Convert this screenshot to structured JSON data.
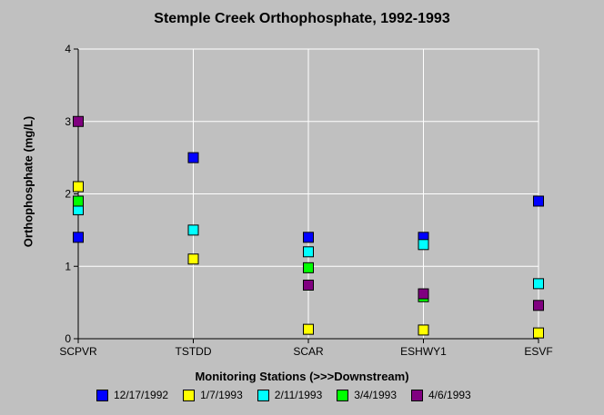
{
  "chart_data": {
    "type": "scatter",
    "title": "Stemple Creek Orthophosphate, 1992-1993",
    "xlabel": "Monitoring Stations (>>>Downstream)",
    "ylabel": "Orthophosphate (mg/L)",
    "categories": [
      "SCPVR",
      "TSTDD",
      "SCAR",
      "ESHWY1",
      "ESVF"
    ],
    "ylim": [
      0,
      4
    ],
    "yticks": [
      0,
      1,
      2,
      3,
      4
    ],
    "grid": "vertical and horizontal gridlines",
    "legend_position": "bottom",
    "series": [
      {
        "name": "12/17/1992",
        "color": "#0000ff",
        "values": [
          1.4,
          2.5,
          1.4,
          1.4,
          1.9
        ]
      },
      {
        "name": "1/7/1993",
        "color": "#ffff00",
        "values": [
          2.1,
          1.1,
          0.13,
          0.12,
          0.08
        ]
      },
      {
        "name": "2/11/1993",
        "color": "#00ffff",
        "values": [
          1.78,
          1.5,
          1.2,
          1.3,
          0.76
        ]
      },
      {
        "name": "3/4/1993",
        "color": "#00ff00",
        "values": [
          1.9,
          null,
          0.98,
          0.58,
          null
        ]
      },
      {
        "name": "4/6/1993",
        "color": "#800080",
        "values": [
          3.0,
          null,
          0.74,
          0.62,
          0.46
        ]
      }
    ]
  }
}
